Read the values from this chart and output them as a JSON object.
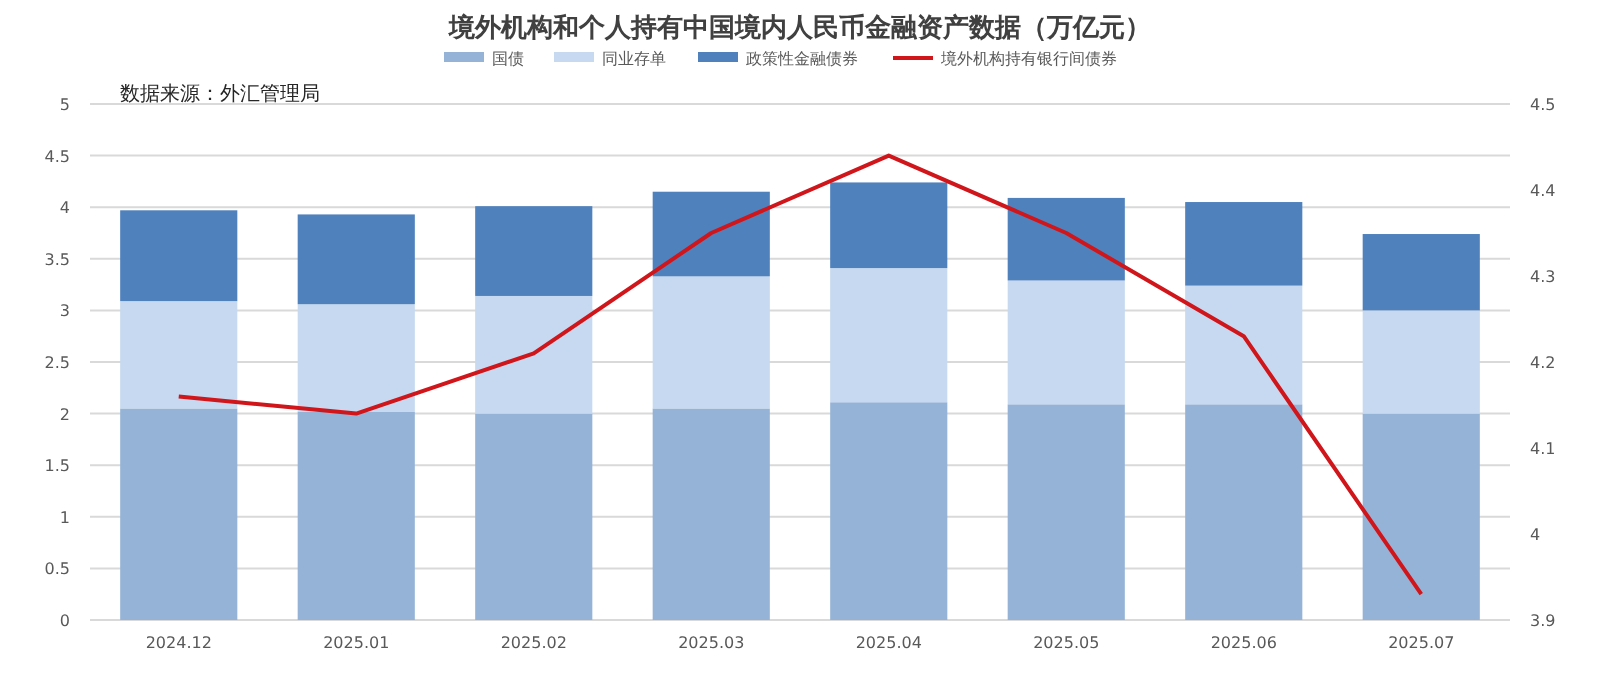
{
  "chart_data": {
    "type": "bar",
    "stacked": true,
    "title": "境外机构和个人持有中国境内人民币金融资产数据（万亿元）",
    "annotations": [
      "数据来源：外汇管理局"
    ],
    "categories": [
      "2024.12",
      "2025.01",
      "2025.02",
      "2025.03",
      "2025.04",
      "2025.05",
      "2025.06",
      "2025.07"
    ],
    "series": [
      {
        "name": "国债",
        "color": "#95b3d7",
        "values": [
          2.05,
          2.02,
          2.0,
          2.05,
          2.11,
          2.09,
          2.09,
          2.0
        ]
      },
      {
        "name": "同业存单",
        "color": "#c6d9f0",
        "values": [
          1.04,
          1.04,
          1.14,
          1.28,
          1.3,
          1.2,
          1.15,
          1.0
        ]
      },
      {
        "name": "政策性金融债券",
        "color": "#4f81bd",
        "values": [
          0.88,
          0.87,
          0.87,
          0.82,
          0.83,
          0.8,
          0.81,
          0.74
        ]
      },
      {
        "name": "境外机构持有银行间债券",
        "type": "line",
        "axis": "y2",
        "color": "#d0161b",
        "values": [
          4.16,
          4.14,
          4.21,
          4.35,
          4.44,
          4.35,
          4.23,
          3.93
        ]
      }
    ],
    "ylim": [
      0,
      5
    ],
    "yticks": [
      0,
      0.5,
      1,
      1.5,
      2,
      2.5,
      3,
      3.5,
      4,
      4.5,
      5
    ],
    "y2lim": [
      3.9,
      4.5
    ],
    "y2ticks": [
      3.9,
      4,
      4.1,
      4.2,
      4.3,
      4.4,
      4.5
    ],
    "grid": "y",
    "legend": "top"
  }
}
